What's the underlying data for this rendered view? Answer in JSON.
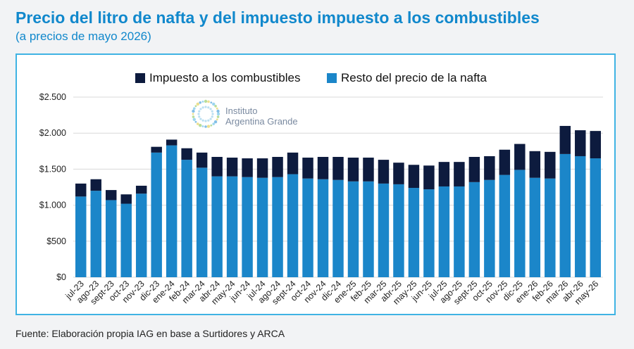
{
  "header": {
    "title": "Precio del litro de nafta y del impuesto impuesto a los combustibles",
    "subtitle": "(a precios de mayo 2026)"
  },
  "footer": {
    "source": "Fuente: Elaboración propia IAG en base a Surtidores y ARCA"
  },
  "logo": {
    "line1": "Instituto",
    "line2": "Argentina Grande"
  },
  "colors": {
    "impuesto": "#0d1b3e",
    "resto": "#1b86c9",
    "title": "#1188cc",
    "frame": "#3fb3e3"
  },
  "chart_data": {
    "type": "bar",
    "stacked": true,
    "categories": [
      "jul-23",
      "ago-23",
      "sept-23",
      "oct-23",
      "nov-23",
      "dic-23",
      "ene-24",
      "feb-24",
      "mar-24",
      "abr-24",
      "may-24",
      "jun-24",
      "jul-24",
      "ago-24",
      "sept-24",
      "oct-24",
      "nov-24",
      "dic-24",
      "ene-25",
      "feb-25",
      "mar-25",
      "abr-25",
      "may-25",
      "jun-25",
      "jul-25",
      "ago-25",
      "sept-25",
      "oct-25",
      "nov-25",
      "dic-25",
      "ene-26",
      "feb-26",
      "mar-26",
      "abr-26",
      "may-26"
    ],
    "series": [
      {
        "name": "Resto del precio de la nafta",
        "color": "#1b86c9",
        "values": [
          1120,
          1200,
          1070,
          1020,
          1160,
          1730,
          1830,
          1630,
          1520,
          1400,
          1400,
          1390,
          1380,
          1390,
          1430,
          1370,
          1360,
          1350,
          1330,
          1330,
          1300,
          1290,
          1240,
          1220,
          1260,
          1260,
          1320,
          1350,
          1420,
          1490,
          1380,
          1370,
          1710,
          1680,
          1650
        ]
      },
      {
        "name": "Impuesto a los combustibles",
        "color": "#0d1b3e",
        "values": [
          180,
          160,
          140,
          130,
          110,
          80,
          80,
          160,
          210,
          270,
          260,
          260,
          270,
          280,
          300,
          290,
          310,
          320,
          330,
          330,
          330,
          300,
          320,
          330,
          340,
          340,
          350,
          330,
          350,
          360,
          370,
          370,
          390,
          360,
          380
        ]
      }
    ],
    "legend": [
      "Impuesto a los combustibles",
      "Resto del precio de la nafta"
    ],
    "legend_position": "top-center",
    "ylim": [
      0,
      2500
    ],
    "yticks": [
      0,
      500,
      1000,
      1500,
      2000,
      2500
    ],
    "ytick_labels": [
      "$0",
      "$500",
      "$1.000",
      "$1.500",
      "$2.000",
      "$2.500"
    ],
    "grid": true
  }
}
